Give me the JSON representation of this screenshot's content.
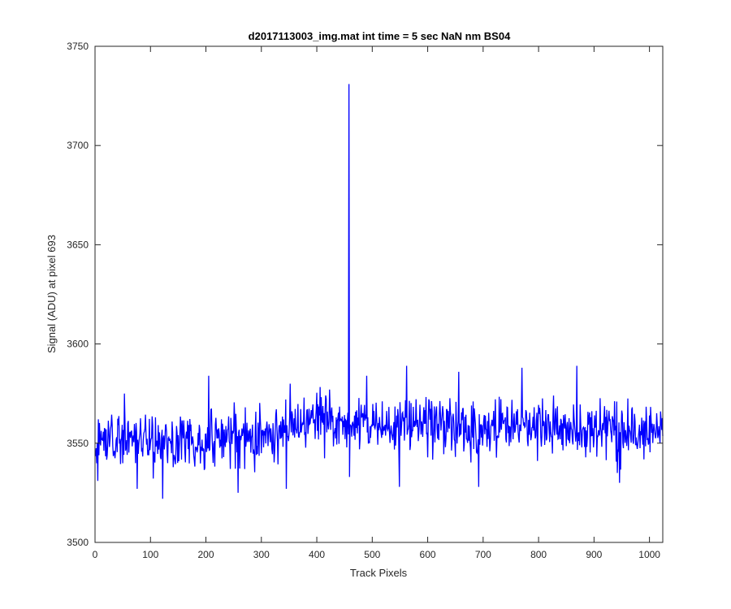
{
  "figure": {
    "background": "#ffffff"
  },
  "chart_data": {
    "type": "line",
    "title": "d2017113003_img.mat int time = 5 sec  NaN nm BS04",
    "xlabel": "Track Pixels",
    "ylabel": "Signal (ADU) at pixel 693",
    "xlim": [
      0,
      1024
    ],
    "ylim": [
      3500,
      3750
    ],
    "x_ticks": [
      0,
      100,
      200,
      300,
      400,
      500,
      600,
      700,
      800,
      900,
      1000
    ],
    "y_ticks": [
      3500,
      3550,
      3600,
      3650,
      3700,
      3750
    ],
    "x_tick_labels": [
      "0",
      "100",
      "200",
      "300",
      "400",
      "500",
      "600",
      "700",
      "800",
      "900",
      "1000"
    ],
    "y_tick_labels": [
      "3500",
      "3550",
      "3600",
      "3650",
      "3700",
      "3750"
    ],
    "grid": false,
    "box": true,
    "colors": {
      "line": "#0000ff",
      "axes": "#262626"
    },
    "series": [
      {
        "x_start": 1,
        "x_step": 1,
        "noise_profile": {
          "count": 1024,
          "baseline": [
            [
              0,
              3552
            ],
            [
              300,
              3552
            ],
            [
              380,
              3561
            ],
            [
              500,
              3560
            ],
            [
              700,
              3558
            ],
            [
              900,
              3557
            ],
            [
              1024,
              3555
            ]
          ],
          "spread": 7,
          "seed": 693
        },
        "features": [
          {
            "x": 5,
            "y": 3531
          },
          {
            "x": 53,
            "y": 3575
          },
          {
            "x": 76,
            "y": 3527
          },
          {
            "x": 122,
            "y": 3522
          },
          {
            "x": 205,
            "y": 3584
          },
          {
            "x": 258,
            "y": 3525
          },
          {
            "x": 345,
            "y": 3527
          },
          {
            "x": 352,
            "y": 3580
          },
          {
            "x": 458,
            "y": 3731
          },
          {
            "x": 459,
            "y": 3533
          },
          {
            "x": 490,
            "y": 3584
          },
          {
            "x": 549,
            "y": 3528
          },
          {
            "x": 562,
            "y": 3589
          },
          {
            "x": 656,
            "y": 3586
          },
          {
            "x": 692,
            "y": 3528
          },
          {
            "x": 770,
            "y": 3588
          },
          {
            "x": 869,
            "y": 3589
          },
          {
            "x": 942,
            "y": 3535
          },
          {
            "x": 946,
            "y": 3530
          },
          {
            "x": 1020,
            "y": 3566
          }
        ]
      }
    ]
  }
}
